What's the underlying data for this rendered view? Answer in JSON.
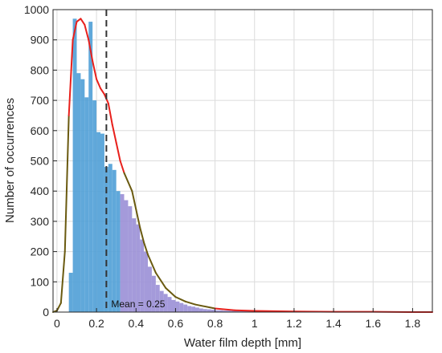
{
  "chart_data": {
    "type": "bar",
    "title": "",
    "xlabel": "Water film depth [mm]",
    "ylabel": "Number of occurrences",
    "xlim": [
      -0.02,
      1.9
    ],
    "ylim": [
      0,
      1000
    ],
    "xticks": [
      0,
      0.2,
      0.4,
      0.6,
      0.8,
      1,
      1.2,
      1.4,
      1.6,
      1.8
    ],
    "xtick_labels": [
      "0",
      "0.2",
      "0.4",
      "0.6",
      "0.8",
      "1",
      "1.2",
      "1.4",
      "1.6",
      "1.8"
    ],
    "yticks": [
      0,
      100,
      200,
      300,
      400,
      500,
      600,
      700,
      800,
      900,
      1000
    ],
    "ytick_labels": [
      "0",
      "100",
      "200",
      "300",
      "400",
      "500",
      "600",
      "700",
      "800",
      "900",
      "1000"
    ],
    "grid": true,
    "bin_width": 0.02,
    "bin_starts": [
      0.06,
      0.08,
      0.1,
      0.12,
      0.14,
      0.16,
      0.18,
      0.2,
      0.22,
      0.24,
      0.26,
      0.28,
      0.3,
      0.32,
      0.34,
      0.36,
      0.38,
      0.4,
      0.42,
      0.44,
      0.46,
      0.48,
      0.5,
      0.52,
      0.54,
      0.56,
      0.58,
      0.6,
      0.62,
      0.64,
      0.66,
      0.68,
      0.7,
      0.72,
      0.74,
      0.76,
      0.78,
      0.8,
      0.84,
      0.88,
      0.92,
      0.96,
      1.0,
      1.1,
      1.2
    ],
    "counts": [
      130,
      970,
      790,
      770,
      710,
      960,
      700,
      595,
      590,
      480,
      490,
      470,
      400,
      390,
      370,
      350,
      310,
      290,
      240,
      200,
      150,
      120,
      90,
      70,
      60,
      50,
      40,
      35,
      30,
      25,
      20,
      18,
      15,
      12,
      10,
      9,
      8,
      6,
      5,
      4,
      3,
      3,
      2,
      1,
      1
    ],
    "fit_line": {
      "x": [
        -0.02,
        0.0,
        0.02,
        0.04,
        0.06,
        0.08,
        0.1,
        0.12,
        0.14,
        0.16,
        0.18,
        0.2,
        0.22,
        0.24,
        0.26,
        0.28,
        0.3,
        0.32,
        0.34,
        0.36,
        0.38,
        0.4,
        0.42,
        0.44,
        0.46,
        0.5,
        0.55,
        0.6,
        0.65,
        0.7,
        0.8,
        0.9,
        1.0,
        1.2,
        1.4,
        1.6,
        1.8,
        1.9
      ],
      "y": [
        0,
        5,
        30,
        200,
        650,
        900,
        960,
        970,
        950,
        900,
        830,
        770,
        740,
        720,
        690,
        620,
        560,
        500,
        460,
        430,
        400,
        340,
        280,
        230,
        190,
        130,
        80,
        50,
        35,
        25,
        12,
        6,
        4,
        2,
        1,
        1,
        0,
        0
      ],
      "colors": [
        "#6a5a10",
        "#e8201c"
      ]
    },
    "mean_line": {
      "x": 0.25,
      "label": "Mean = 0.25"
    },
    "colors": {
      "bars": "#4f9fd6",
      "bars_alt": "#9a8fd6",
      "fit_red": "#e8201c",
      "fit_dark": "#6a5a10",
      "mean": "#333333"
    }
  }
}
